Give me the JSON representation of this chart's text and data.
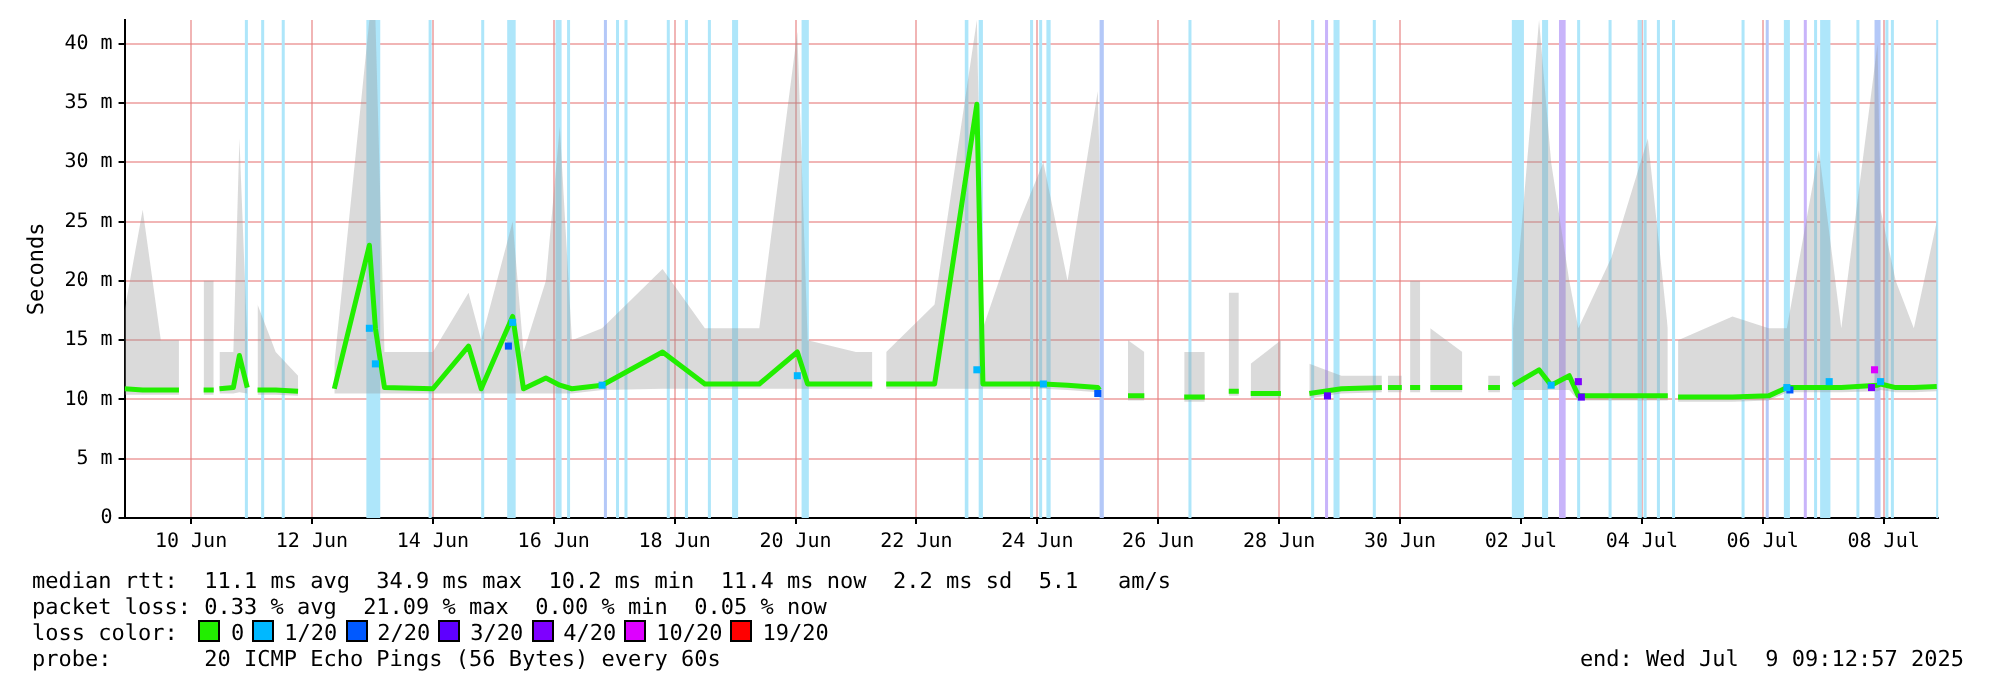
{
  "chart_data": {
    "type": "line",
    "ylabel": "Seconds",
    "legend_title": "loss color:",
    "legend": "bottom",
    "grid": true,
    "marker": "none",
    "line_style": "solid",
    "xlim": [
      "--06-09T09:36",
      "--07-09T09:36"
    ],
    "ylim": [
      0,
      42
    ],
    "xticks": [
      {
        "value": "--06-10T12:00",
        "label": "10 Jun"
      },
      {
        "value": "--06-12T12:00",
        "label": "12 Jun"
      },
      {
        "value": "--06-14T12:00",
        "label": "14 Jun"
      },
      {
        "value": "--06-16T12:00",
        "label": "16 Jun"
      },
      {
        "value": "--06-18T12:00",
        "label": "18 Jun"
      },
      {
        "value": "--06-20T12:00",
        "label": "20 Jun"
      },
      {
        "value": "--06-22T12:00",
        "label": "22 Jun"
      },
      {
        "value": "--06-24T12:00",
        "label": "24 Jun"
      },
      {
        "value": "--06-26T12:00",
        "label": "26 Jun"
      },
      {
        "value": "--06-28T12:00",
        "label": "28 Jun"
      },
      {
        "value": "--06-30T12:00",
        "label": "30 Jun"
      },
      {
        "value": "--07-02T12:00",
        "label": "02 Jul"
      },
      {
        "value": "--07-04T12:00",
        "label": "04 Jul"
      },
      {
        "value": "--07-06T12:00",
        "label": "06 Jul"
      },
      {
        "value": "--07-08T12:00",
        "label": "08 Jul"
      }
    ],
    "yticks": [
      0,
      {
        "value": 5,
        "label": "5 m"
      },
      {
        "value": 10,
        "label": "10 m"
      },
      {
        "value": 15,
        "label": "15 m"
      },
      {
        "value": 20,
        "label": "20 m"
      },
      {
        "value": 25,
        "label": "25 m"
      },
      {
        "value": 30,
        "label": "30 m"
      },
      {
        "value": 35,
        "label": "35 m"
      },
      {
        "value": 40,
        "label": "40 m"
      }
    ],
    "series": [
      {
        "name": "0",
        "color": "#22ee00",
        "x": [
          "--06-09T09:36",
          "--06-09T16:48",
          "--06-10T00:00",
          "--06-10T07:12",
          "--06-10T12:00",
          "--06-10T17:00",
          "--06-10T21:00",
          "--06-10T21:36",
          "--06-10T23:17",
          "--06-11T04:48",
          "--06-11T07:12",
          "--06-11T10:19",
          "--06-11T12:00",
          "--06-11T14:24",
          "--06-11T21:36",
          "--06-12T06:29",
          "--06-12T09:36",
          "--06-12T20:53",
          "--06-13T10:48",
          "--06-13T13:12",
          "--06-13T16:48",
          "--06-14T12:00",
          "--06-15T02:10",
          "--06-15T07:12",
          "--06-15T19:41",
          "--06-16T00:00",
          "--06-16T08:53",
          "--06-16T14:24",
          "--06-16T19:12",
          "--06-17T07:12",
          "--06-18T07:12",
          "--06-19T00:00",
          "--06-19T21:36",
          "--06-20T12:43",
          "--06-20T16:48",
          "--06-21T12:00",
          "--06-21T18:29",
          "--06-21T21:36",
          "--06-22T00:00",
          "--06-22T19:12",
          "--06-23T12:00",
          "--06-23T14:24",
          "--06-24T04:48",
          "--06-24T14:24",
          "--06-25T00:00",
          "--06-25T12:00",
          "--06-25T12:43",
          "--06-25T14:24",
          "--06-26T00:00",
          "--06-26T06:29",
          "--06-26T09:36",
          "--06-26T22:19",
          "--06-27T06:29",
          "--06-27T09:36",
          "--06-27T16:00",
          "--06-27T20:00",
          "--06-27T20:24",
          "--06-28T00:43",
          "--06-28T12:43",
          "--06-28T16:48",
          "--06-29T00:00",
          "--06-29T12:43",
          "--06-30T04:48",
          "--06-30T06:00",
          "--06-30T07:12",
          "--06-30T12:43",
          "--06-30T14:24",
          "--06-30T16:00",
          "--06-30T20:00",
          "--06-30T20:24",
          "--07-01T00:00",
          "--07-01T12:43",
          "--07-01T16:48",
          "--07-01T23:00",
          "--07-02T03:41",
          "--07-02T04:48",
          "--07-02T08:53",
          "--07-02T19:12",
          "--07-03T00:00",
          "--07-03T07:12",
          "--07-03T10:48",
          "--07-04T00:00",
          "--07-04T14:24",
          "--07-04T22:19",
          "--07-05T00:00",
          "--07-05T02:24",
          "--07-06T00:00",
          "--07-06T14:24",
          "--07-06T21:36",
          "--07-07T10:19",
          "--07-07T19:12",
          "--07-08T09:36",
          "--07-08T10:48",
          "--07-08T16:48",
          "--07-09T00:00",
          "--07-09T09:07"
        ],
        "values": [
          10.9,
          10.8,
          10.8,
          10.8,
          null,
          10.8,
          10.8,
          null,
          10.9,
          11,
          13.7,
          11,
          null,
          10.8,
          10.8,
          10.7,
          null,
          10.9,
          23,
          16,
          11,
          10.9,
          14.5,
          10.9,
          17,
          10.9,
          11.8,
          11.2,
          10.9,
          11.2,
          14,
          11.3,
          11.3,
          14,
          11.3,
          11.3,
          11.3,
          null,
          11.3,
          11.3,
          34.9,
          11.3,
          11.3,
          11.3,
          11.2,
          11,
          10.8,
          null,
          10.3,
          10.3,
          null,
          10.2,
          10.2,
          null,
          10.7,
          10.7,
          null,
          10.5,
          10.5,
          null,
          10.5,
          10.9,
          11,
          null,
          11,
          11,
          null,
          11,
          11,
          null,
          11,
          11,
          null,
          11,
          11,
          null,
          11.2,
          12.5,
          11.2,
          12,
          10.3,
          10.3,
          10.3,
          10.3,
          null,
          10.2,
          10.2,
          10.3,
          11,
          11,
          11,
          11.2,
          11.3,
          11,
          11,
          11.1
        ],
        "lower": [
          10.4,
          10.4,
          10.4,
          10.4,
          null,
          10.4,
          10.4,
          null,
          10.5,
          10.5,
          10.6,
          10.5,
          null,
          10.4,
          10.4,
          10.3,
          null,
          10.5,
          10.5,
          10.5,
          10.5,
          10.5,
          10.5,
          10.5,
          10.5,
          10.5,
          10.5,
          10.5,
          10.5,
          10.8,
          10.9,
          10.9,
          10.9,
          10.9,
          10.9,
          10.9,
          10.9,
          null,
          10.9,
          10.9,
          10.9,
          10.9,
          10.9,
          10.9,
          10.8,
          10.6,
          10.4,
          null,
          9.9,
          9.9,
          null,
          9.8,
          9.8,
          null,
          10.3,
          10.3,
          null,
          10.1,
          10.1,
          null,
          10.1,
          10.5,
          10.6,
          null,
          10.6,
          10.6,
          null,
          10.6,
          10.6,
          null,
          10.6,
          10.6,
          null,
          10.6,
          10.6,
          null,
          10.8,
          10.8,
          10.8,
          10.8,
          9.9,
          9.9,
          9.9,
          9.9,
          null,
          9.8,
          9.8,
          9.9,
          10.6,
          10.6,
          10.6,
          10.7,
          10.8,
          10.6,
          10.6,
          10.7
        ],
        "upper": [
          17.5,
          26,
          15,
          15,
          null,
          20,
          20,
          null,
          14,
          14,
          32,
          15,
          null,
          18,
          14,
          12,
          null,
          13,
          42,
          42,
          14,
          14,
          19,
          15,
          25,
          14,
          20,
          33,
          15,
          16,
          21,
          16,
          16,
          41,
          15,
          14,
          14,
          null,
          14,
          18,
          42,
          16,
          25,
          30,
          20,
          36,
          30,
          null,
          15,
          14,
          null,
          14,
          14,
          null,
          19,
          19,
          null,
          13,
          15,
          null,
          13,
          12,
          12,
          null,
          12,
          12,
          null,
          20,
          20,
          null,
          16,
          14,
          null,
          12,
          12,
          null,
          16,
          42,
          30,
          20,
          16,
          22,
          32,
          16,
          null,
          15,
          17,
          16,
          16,
          31,
          16,
          40,
          26,
          20,
          16,
          25
        ]
      },
      {
        "name": "1/20",
        "type": "scatter",
        "marker": "square",
        "color": "#00b8ff",
        "x": [
          "--06-13T10:48",
          "--06-13T13:12",
          "--06-15T19:41",
          "--06-17T07:12",
          "--06-20T12:43",
          "--06-23T12:00",
          "--06-24T14:24",
          "--07-03T00:00",
          "--07-06T21:36",
          "--07-07T14:24",
          "--07-08T10:48"
        ],
        "values": [
          16,
          13,
          16.5,
          11.2,
          12,
          12.5,
          11.3,
          11.2,
          11,
          11.5,
          11.5
        ]
      },
      {
        "name": "2/20",
        "type": "scatter",
        "marker": "square",
        "color": "#0059ff",
        "x": [
          "--06-15T18:00",
          "--06-25T12:00",
          "--07-06T22:48"
        ],
        "values": [
          14.5,
          10.5,
          10.8
        ]
      },
      {
        "name": "3/20",
        "type": "scatter",
        "marker": "square",
        "color": "#5e00ff",
        "x": [
          "--06-29T07:12",
          "--07-03T12:00"
        ],
        "values": [
          10.3,
          10.2
        ]
      },
      {
        "name": "4/20",
        "type": "scatter",
        "marker": "square",
        "color": "#7e00ff",
        "x": [
          "--07-03T10:48",
          "--07-08T07:12"
        ],
        "values": [
          11.5,
          11
        ]
      },
      {
        "name": "10/20",
        "type": "scatter",
        "marker": "square",
        "color": "#dd00ff",
        "x": [
          "--07-08T08:24"
        ],
        "values": [
          12.5
        ]
      },
      {
        "name": "19/20",
        "type": "scatter",
        "marker": "square",
        "color": "#ff0000"
      }
    ],
    "bands": [
      {
        "axis": "x",
        "from": "--06-11T09:22",
        "to": "--06-11T10:34",
        "color": "#aee6fa"
      },
      {
        "axis": "x",
        "from": "--06-11T15:50",
        "to": "--06-11T17:02",
        "color": "#aee6fa"
      },
      {
        "axis": "x",
        "from": "--06-12T00:00",
        "to": "--06-12T01:12",
        "color": "#aee6fa"
      },
      {
        "axis": "x",
        "from": "--06-13T09:36",
        "to": "--06-13T15:07",
        "color": "#aee6fa"
      },
      {
        "axis": "x",
        "from": "--06-14T10:19",
        "to": "--06-14T11:31",
        "color": "#aee6fa"
      },
      {
        "axis": "x",
        "from": "--06-15T07:12",
        "to": "--06-15T08:24",
        "color": "#aee6fa"
      },
      {
        "axis": "x",
        "from": "--06-15T17:31",
        "to": "--06-15T20:53",
        "color": "#aee6fa"
      },
      {
        "axis": "x",
        "from": "--06-16T12:43",
        "to": "--06-16T15:07",
        "color": "#aee6fa"
      },
      {
        "axis": "x",
        "from": "--06-16T17:17",
        "to": "--06-16T18:29",
        "color": "#aee6fa"
      },
      {
        "axis": "x",
        "from": "--06-17T07:55",
        "to": "--06-17T09:07",
        "color": "#b4c8f8"
      },
      {
        "axis": "x",
        "from": "--06-17T12:43",
        "to": "--06-17T13:55",
        "color": "#aee6fa"
      },
      {
        "axis": "x",
        "from": "--06-17T16:05",
        "to": "--06-17T17:17",
        "color": "#aee6fa"
      },
      {
        "axis": "x",
        "from": "--06-18T08:53",
        "to": "--06-18T10:05",
        "color": "#aee6fa"
      },
      {
        "axis": "x",
        "from": "--06-18T16:05",
        "to": "--06-18T17:17",
        "color": "#aee6fa"
      },
      {
        "axis": "x",
        "from": "--06-19T01:12",
        "to": "--06-19T02:24",
        "color": "#aee6fa"
      },
      {
        "axis": "x",
        "from": "--06-19T10:48",
        "to": "--06-19T13:12",
        "color": "#aee6fa"
      },
      {
        "axis": "x",
        "from": "--06-20T14:24",
        "to": "--06-20T17:17",
        "color": "#aee6fa"
      },
      {
        "axis": "x",
        "from": "--06-23T07:12",
        "to": "--06-23T08:38",
        "color": "#aee6fa"
      },
      {
        "axis": "x",
        "from": "--06-23T12:43",
        "to": "--06-23T14:24",
        "color": "#aee6fa"
      },
      {
        "axis": "x",
        "from": "--06-24T09:07",
        "to": "--06-24T10:19",
        "color": "#aee6fa"
      },
      {
        "axis": "x",
        "from": "--06-24T12:43",
        "to": "--06-24T13:55",
        "color": "#aee6fa"
      },
      {
        "axis": "x",
        "from": "--06-24T15:36",
        "to": "--06-24T17:17",
        "color": "#aee6fa"
      },
      {
        "axis": "x",
        "from": "--06-25T12:43",
        "to": "--06-25T14:24",
        "color": "#b4c8f8"
      },
      {
        "axis": "x",
        "from": "--06-27T00:00",
        "to": "--06-27T01:12",
        "color": "#aee6fa"
      },
      {
        "axis": "x",
        "from": "--06-29T00:43",
        "to": "--06-29T01:55",
        "color": "#aee6fa"
      },
      {
        "axis": "x",
        "from": "--06-29T06:14",
        "to": "--06-29T07:26",
        "color": "#c8b4fa"
      },
      {
        "axis": "x",
        "from": "--06-29T09:36",
        "to": "--06-29T12:00",
        "color": "#aee6fa"
      },
      {
        "axis": "x",
        "from": "--06-30T01:12",
        "to": "--06-30T02:24",
        "color": "#aee6fa"
      },
      {
        "axis": "x",
        "from": "--07-02T08:24",
        "to": "--07-02T13:12",
        "color": "#aee6fa"
      },
      {
        "axis": "x",
        "from": "--07-02T20:24",
        "to": "--07-02T22:48",
        "color": "#aee6fa"
      },
      {
        "axis": "x",
        "from": "--07-03T03:07",
        "to": "--07-03T05:46",
        "color": "#c8b4fa"
      },
      {
        "axis": "x",
        "from": "--07-03T10:19",
        "to": "--07-03T11:31",
        "color": "#aee6fa"
      },
      {
        "axis": "x",
        "from": "--07-03T22:48",
        "to": "--07-04T00:00",
        "color": "#aee6fa"
      },
      {
        "axis": "x",
        "from": "--07-04T10:19",
        "to": "--07-04T12:00",
        "color": "#aee6fa"
      },
      {
        "axis": "x",
        "from": "--07-04T12:43",
        "to": "--07-04T13:55",
        "color": "#aee6fa"
      },
      {
        "axis": "x",
        "from": "--07-04T18:00",
        "to": "--07-04T19:12",
        "color": "#aee6fa"
      },
      {
        "axis": "x",
        "from": "--07-05T00:00",
        "to": "--07-05T01:12",
        "color": "#aee6fa"
      },
      {
        "axis": "x",
        "from": "--07-06T03:36",
        "to": "--07-06T04:48",
        "color": "#aee6fa"
      },
      {
        "axis": "x",
        "from": "--07-06T13:12",
        "to": "--07-06T14:24",
        "color": "#b4c8f8"
      },
      {
        "axis": "x",
        "from": "--07-06T20:24",
        "to": "--07-06T22:48",
        "color": "#aee6fa"
      },
      {
        "axis": "x",
        "from": "--07-07T04:19",
        "to": "--07-07T05:31",
        "color": "#c8b4fa"
      },
      {
        "axis": "x",
        "from": "--07-07T08:24",
        "to": "--07-07T09:36",
        "color": "#aee6fa"
      },
      {
        "axis": "x",
        "from": "--07-07T10:48",
        "to": "--07-07T14:53",
        "color": "#aee6fa"
      },
      {
        "axis": "x",
        "from": "--07-08T01:12",
        "to": "--07-08T02:24",
        "color": "#aee6fa"
      },
      {
        "axis": "x",
        "from": "--07-08T08:24",
        "to": "--07-08T10:48",
        "color": "#b4c8f8"
      },
      {
        "axis": "x",
        "from": "--07-08T12:43",
        "to": "--07-08T13:55",
        "color": "#aee6fa"
      },
      {
        "axis": "x",
        "from": "--07-08T14:53",
        "to": "--07-08T16:05",
        "color": "#aee6fa"
      },
      {
        "axis": "x",
        "from": "--07-09T08:53",
        "to": "--07-09T09:36",
        "color": "#aee6fa"
      }
    ],
    "annotations": [
      "median rtt:  11.1 ms avg  34.9 ms max  10.2 ms min  11.4 ms now  2.2 ms sd  5.1   am/s",
      "packet loss: 0.33 % avg  21.09 % max  0.00 % min  0.05 % now",
      "probe:       20 ICMP Echo Pings (56 Bytes) every 60s",
      "end: Wed Jul  9 09:12:57 2025"
    ]
  }
}
